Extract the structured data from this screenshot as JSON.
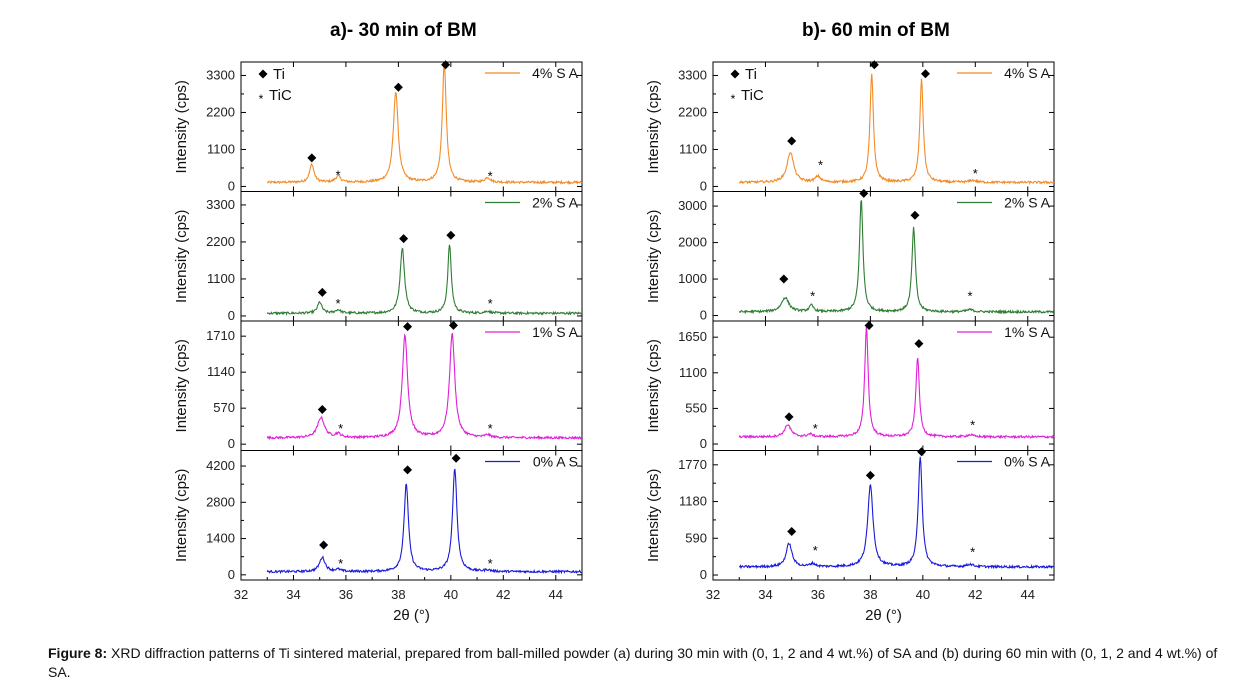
{
  "chart_data": [
    {
      "type": "line",
      "title": "a)- 30 min of BM",
      "xlabel": "2θ (°)",
      "xlim": [
        32,
        45
      ],
      "xticks": [
        32,
        34,
        36,
        38,
        40,
        42,
        44
      ],
      "legend_markers": [
        {
          "symbol": "◆",
          "label": "Ti"
        },
        {
          "symbol": "*",
          "label": "TiC"
        }
      ],
      "subplots": [
        {
          "name": "4% S A",
          "color": "#f28c28",
          "ylabel": "Intensity (cps)",
          "yticks": [
            0,
            1100,
            2200,
            3300
          ],
          "ylim": [
            -150,
            3700
          ],
          "baseline": 120,
          "peaks": [
            {
              "x": 34.7,
              "y": 540,
              "width": 0.1
            },
            {
              "x": 35.7,
              "y": 180,
              "width": 0.12
            },
            {
              "x": 37.9,
              "y": 2700,
              "width": 0.11
            },
            {
              "x": 39.75,
              "y": 3550,
              "width": 0.09
            },
            {
              "x": 41.4,
              "y": 140,
              "width": 0.12
            }
          ],
          "annotations": [
            {
              "symbol": "◆",
              "x": 34.7,
              "y": 850
            },
            {
              "symbol": "*",
              "x": 35.7,
              "y": 350
            },
            {
              "symbol": "◆",
              "x": 38.0,
              "y": 2950
            },
            {
              "symbol": "◆",
              "x": 39.8,
              "y": 3620
            },
            {
              "symbol": "*",
              "x": 41.5,
              "y": 330
            }
          ]
        },
        {
          "name": "2% S A",
          "color": "#2e7d32",
          "ylabel": "Intensity (cps)",
          "yticks": [
            0,
            1100,
            2200,
            3300
          ],
          "ylim": [
            -150,
            3700
          ],
          "baseline": 80,
          "peaks": [
            {
              "x": 35.0,
              "y": 330,
              "width": 0.1
            },
            {
              "x": 35.7,
              "y": 100,
              "width": 0.12
            },
            {
              "x": 38.15,
              "y": 1950,
              "width": 0.1
            },
            {
              "x": 39.95,
              "y": 2050,
              "width": 0.08
            },
            {
              "x": 41.4,
              "y": 60,
              "width": 0.12
            }
          ],
          "annotations": [
            {
              "symbol": "◆",
              "x": 35.1,
              "y": 700
            },
            {
              "symbol": "*",
              "x": 35.7,
              "y": 380
            },
            {
              "symbol": "◆",
              "x": 38.2,
              "y": 2300
            },
            {
              "symbol": "◆",
              "x": 40.0,
              "y": 2400
            },
            {
              "symbol": "*",
              "x": 41.5,
              "y": 380
            }
          ]
        },
        {
          "name": "1% S A",
          "color": "#e020d8",
          "ylabel": "Intensity (cps)",
          "yticks": [
            0,
            570,
            1140,
            1710
          ],
          "ylim": [
            -100,
            1950
          ],
          "baseline": 100,
          "peaks": [
            {
              "x": 35.05,
              "y": 320,
              "width": 0.16
            },
            {
              "x": 35.7,
              "y": 60,
              "width": 0.12
            },
            {
              "x": 38.25,
              "y": 1630,
              "width": 0.12
            },
            {
              "x": 40.05,
              "y": 1650,
              "width": 0.12
            },
            {
              "x": 41.4,
              "y": 40,
              "width": 0.12
            }
          ],
          "annotations": [
            {
              "symbol": "◆",
              "x": 35.1,
              "y": 550
            },
            {
              "symbol": "*",
              "x": 35.8,
              "y": 260
            },
            {
              "symbol": "◆",
              "x": 38.35,
              "y": 1860
            },
            {
              "symbol": "◆",
              "x": 40.1,
              "y": 1880
            },
            {
              "symbol": "*",
              "x": 41.5,
              "y": 260
            }
          ]
        },
        {
          "name": "0% A S",
          "color": "#1a1ad8",
          "ylabel": "Intensity (cps)",
          "yticks": [
            0,
            1400,
            2800,
            4200
          ],
          "ylim": [
            -200,
            4800
          ],
          "baseline": 120,
          "peaks": [
            {
              "x": 35.1,
              "y": 550,
              "width": 0.13
            },
            {
              "x": 35.7,
              "y": 80,
              "width": 0.12
            },
            {
              "x": 38.3,
              "y": 3400,
              "width": 0.1
            },
            {
              "x": 40.15,
              "y": 4000,
              "width": 0.1
            },
            {
              "x": 41.4,
              "y": 60,
              "width": 0.12
            }
          ],
          "annotations": [
            {
              "symbol": "◆",
              "x": 35.15,
              "y": 1150
            },
            {
              "symbol": "*",
              "x": 35.8,
              "y": 450
            },
            {
              "symbol": "◆",
              "x": 38.35,
              "y": 4050
            },
            {
              "symbol": "◆",
              "x": 40.2,
              "y": 4500
            },
            {
              "symbol": "*",
              "x": 41.5,
              "y": 450
            }
          ]
        }
      ]
    },
    {
      "type": "line",
      "title": "b)- 60 min of BM",
      "xlabel": "2θ (°)",
      "xlim": [
        32,
        45
      ],
      "xticks": [
        32,
        34,
        36,
        38,
        40,
        42,
        44
      ],
      "legend_markers": [
        {
          "symbol": "◆",
          "label": "Ti"
        },
        {
          "symbol": "*",
          "label": "TiC"
        }
      ],
      "subplots": [
        {
          "name": "4% S A",
          "color": "#f28c28",
          "ylabel": "Intensity (cps)",
          "yticks": [
            0,
            1100,
            2200,
            3300
          ],
          "ylim": [
            -150,
            3700
          ],
          "baseline": 120,
          "peaks": [
            {
              "x": 34.95,
              "y": 900,
              "width": 0.15
            },
            {
              "x": 36.0,
              "y": 170,
              "width": 0.12
            },
            {
              "x": 38.05,
              "y": 3200,
              "width": 0.08
            },
            {
              "x": 39.95,
              "y": 3050,
              "width": 0.08
            },
            {
              "x": 41.9,
              "y": 60,
              "width": 0.15
            }
          ],
          "annotations": [
            {
              "symbol": "◆",
              "x": 35.0,
              "y": 1350
            },
            {
              "symbol": "*",
              "x": 36.1,
              "y": 650
            },
            {
              "symbol": "◆",
              "x": 38.15,
              "y": 3620
            },
            {
              "symbol": "◆",
              "x": 40.1,
              "y": 3350
            },
            {
              "symbol": "*",
              "x": 42.0,
              "y": 400
            }
          ]
        },
        {
          "name": "2% S A",
          "color": "#2e7d32",
          "ylabel": "Intensity (cps)",
          "yticks": [
            0,
            1000,
            2000,
            3000
          ],
          "ylim": [
            -150,
            3400
          ],
          "baseline": 100,
          "peaks": [
            {
              "x": 34.75,
              "y": 390,
              "width": 0.17
            },
            {
              "x": 35.75,
              "y": 170,
              "width": 0.1
            },
            {
              "x": 37.65,
              "y": 3100,
              "width": 0.08
            },
            {
              "x": 39.65,
              "y": 2300,
              "width": 0.08
            },
            {
              "x": 41.8,
              "y": 60,
              "width": 0.15
            }
          ],
          "annotations": [
            {
              "symbol": "◆",
              "x": 34.7,
              "y": 1000
            },
            {
              "symbol": "*",
              "x": 35.8,
              "y": 550
            },
            {
              "symbol": "◆",
              "x": 37.75,
              "y": 3350
            },
            {
              "symbol": "◆",
              "x": 39.7,
              "y": 2750
            },
            {
              "symbol": "*",
              "x": 41.8,
              "y": 550
            }
          ]
        },
        {
          "name": "1% S A",
          "color": "#e020d8",
          "ylabel": "Intensity (cps)",
          "yticks": [
            0,
            550,
            1100,
            1650
          ],
          "ylim": [
            -100,
            1900
          ],
          "baseline": 110,
          "peaks": [
            {
              "x": 34.85,
              "y": 190,
              "width": 0.14
            },
            {
              "x": 35.7,
              "y": 40,
              "width": 0.12
            },
            {
              "x": 37.85,
              "y": 1700,
              "width": 0.08
            },
            {
              "x": 39.8,
              "y": 1230,
              "width": 0.08
            },
            {
              "x": 41.8,
              "y": 30,
              "width": 0.15
            }
          ],
          "annotations": [
            {
              "symbol": "◆",
              "x": 34.9,
              "y": 420
            },
            {
              "symbol": "*",
              "x": 35.9,
              "y": 250
            },
            {
              "symbol": "◆",
              "x": 37.95,
              "y": 1830
            },
            {
              "symbol": "◆",
              "x": 39.85,
              "y": 1550
            },
            {
              "symbol": "*",
              "x": 41.9,
              "y": 300
            }
          ]
        },
        {
          "name": "0% S A",
          "color": "#1a1ad8",
          "ylabel": "Intensity (cps)",
          "yticks": [
            0,
            590,
            1180,
            1770
          ],
          "ylim": [
            -80,
            2000
          ],
          "baseline": 130,
          "peaks": [
            {
              "x": 34.9,
              "y": 380,
              "width": 0.13
            },
            {
              "x": 35.8,
              "y": 50,
              "width": 0.12
            },
            {
              "x": 38.0,
              "y": 1330,
              "width": 0.12
            },
            {
              "x": 39.9,
              "y": 1780,
              "width": 0.09
            },
            {
              "x": 41.8,
              "y": 40,
              "width": 0.15
            }
          ],
          "annotations": [
            {
              "symbol": "◆",
              "x": 35.0,
              "y": 700
            },
            {
              "symbol": "*",
              "x": 35.9,
              "y": 400
            },
            {
              "symbol": "◆",
              "x": 38.0,
              "y": 1600
            },
            {
              "symbol": "◆",
              "x": 39.95,
              "y": 1980
            },
            {
              "symbol": "*",
              "x": 41.9,
              "y": 380
            }
          ]
        }
      ]
    }
  ],
  "caption": {
    "label": "Figure 8:",
    "text": " XRD diffraction patterns of Ti sintered material, prepared from ball-milled powder (a) during 30 min with (0, 1, 2 and 4 wt.%) of SA and (b) during 60 min with (0, 1, 2 and 4 wt.%) of SA."
  }
}
